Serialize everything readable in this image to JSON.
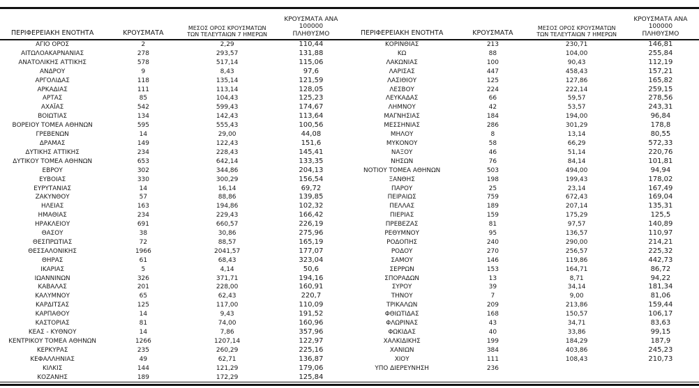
{
  "columns": {
    "region": "ΠΕΡΙΦΕΡΕΙΑΚΗ ΕΝΟΤΗΤΑ",
    "cases": "ΚΡΟΥΣΜΑΤΑ",
    "avg7": "ΜΕΣΟΣ ΟΡΟΣ ΚΡΟΥΣΜΑΤΩΝ\nΤΩΝ ΤΕΛΕΥΤΑΙΩΝ 7 ΗΜΕΡΩΝ",
    "per100k": "ΚΡΟΥΣΜΑΤΑ ΑΝΑ 100000\nΠΛΗΘΥΣΜΟ"
  },
  "left_table": {
    "rows": [
      {
        "name": "ΑΓΙΟ ΟΡΟΣ",
        "cases": "2",
        "avg7": "2,29",
        "per100k": "110,44"
      },
      {
        "name": "ΑΙΤΩΛΟΑΚΑΡΝΑΝΙΑΣ",
        "cases": "278",
        "avg7": "293,57",
        "per100k": "131,88"
      },
      {
        "name": "ΑΝΑΤΟΛΙΚΗΣ ΑΤΤΙΚΗΣ",
        "cases": "578",
        "avg7": "517,14",
        "per100k": "115,06"
      },
      {
        "name": "ΑΝΔΡΟΥ",
        "cases": "9",
        "avg7": "8,43",
        "per100k": "97,6"
      },
      {
        "name": "ΑΡΓΟΛΙΔΑΣ",
        "cases": "118",
        "avg7": "135,14",
        "per100k": "121,59"
      },
      {
        "name": "ΑΡΚΑΔΙΑΣ",
        "cases": "111",
        "avg7": "113,14",
        "per100k": "128,05"
      },
      {
        "name": "ΑΡΤΑΣ",
        "cases": "85",
        "avg7": "104,43",
        "per100k": "125,23"
      },
      {
        "name": "ΑΧΑΪΑΣ",
        "cases": "542",
        "avg7": "599,43",
        "per100k": "174,67"
      },
      {
        "name": "ΒΟΙΩΤΙΑΣ",
        "cases": "134",
        "avg7": "142,43",
        "per100k": "113,64"
      },
      {
        "name": "ΒΟΡΕΙΟΥ ΤΟΜΕΑ ΑΘΗΝΩΝ",
        "cases": "595",
        "avg7": "555,43",
        "per100k": "100,56"
      },
      {
        "name": "ΓΡΕΒΕΝΩΝ",
        "cases": "14",
        "avg7": "29,00",
        "per100k": "44,08"
      },
      {
        "name": "ΔΡΑΜΑΣ",
        "cases": "149",
        "avg7": "122,43",
        "per100k": "151,6"
      },
      {
        "name": "ΔΥΤΙΚΗΣ ΑΤΤΙΚΗΣ",
        "cases": "234",
        "avg7": "228,43",
        "per100k": "145,41"
      },
      {
        "name": "ΔΥΤΙΚΟΥ ΤΟΜΕΑ ΑΘΗΝΩΝ",
        "cases": "653",
        "avg7": "642,14",
        "per100k": "133,35"
      },
      {
        "name": "ΕΒΡΟΥ",
        "cases": "302",
        "avg7": "344,86",
        "per100k": "204,13"
      },
      {
        "name": "ΕΥΒΟΙΑΣ",
        "cases": "330",
        "avg7": "300,29",
        "per100k": "156,54"
      },
      {
        "name": "ΕΥΡΥΤΑΝΙΑΣ",
        "cases": "14",
        "avg7": "16,14",
        "per100k": "69,72"
      },
      {
        "name": "ΖΑΚΥΝΘΟΥ",
        "cases": "57",
        "avg7": "88,86",
        "per100k": "139,85"
      },
      {
        "name": "ΗΛΕΙΑΣ",
        "cases": "163",
        "avg7": "194,86",
        "per100k": "102,32"
      },
      {
        "name": "ΗΜΑΘΙΑΣ",
        "cases": "234",
        "avg7": "229,43",
        "per100k": "166,42"
      },
      {
        "name": "ΗΡΑΚΛΕΙΟΥ",
        "cases": "691",
        "avg7": "660,57",
        "per100k": "226,19"
      },
      {
        "name": "ΘΑΣΟΥ",
        "cases": "38",
        "avg7": "30,86",
        "per100k": "275,96"
      },
      {
        "name": "ΘΕΣΠΡΩΤΙΑΣ",
        "cases": "72",
        "avg7": "88,57",
        "per100k": "165,19"
      },
      {
        "name": "ΘΕΣΣΑΛΟΝΙΚΗΣ",
        "cases": "1966",
        "avg7": "2041,57",
        "per100k": "177,07"
      },
      {
        "name": "ΘΗΡΑΣ",
        "cases": "61",
        "avg7": "68,43",
        "per100k": "323,04"
      },
      {
        "name": "ΙΚΑΡΙΑΣ",
        "cases": "5",
        "avg7": "4,14",
        "per100k": "50,6"
      },
      {
        "name": "ΙΩΑΝΝΙΝΩΝ",
        "cases": "326",
        "avg7": "371,71",
        "per100k": "194,16"
      },
      {
        "name": "ΚΑΒΑΛΑΣ",
        "cases": "201",
        "avg7": "228,00",
        "per100k": "160,91"
      },
      {
        "name": "ΚΑΛΥΜΝΟΥ",
        "cases": "65",
        "avg7": "62,43",
        "per100k": "220,7"
      },
      {
        "name": "ΚΑΡΔΙΤΣΑΣ",
        "cases": "125",
        "avg7": "117,00",
        "per100k": "110,09"
      },
      {
        "name": "ΚΑΡΠΑΘΟΥ",
        "cases": "14",
        "avg7": "9,43",
        "per100k": "191,52"
      },
      {
        "name": "ΚΑΣΤΟΡΙΑΣ",
        "cases": "81",
        "avg7": "74,00",
        "per100k": "160,96"
      },
      {
        "name": "ΚΕΑΣ - ΚΥΘΝΟΥ",
        "cases": "14",
        "avg7": "7,86",
        "per100k": "357,96"
      },
      {
        "name": "ΚΕΝΤΡΙΚΟΥ ΤΟΜΕΑ ΑΘΗΝΩΝ",
        "cases": "1266",
        "avg7": "1207,14",
        "per100k": "122,97"
      },
      {
        "name": "ΚΕΡΚΥΡΑΣ",
        "cases": "235",
        "avg7": "260,29",
        "per100k": "225,16"
      },
      {
        "name": "ΚΕΦΑΛΛΗΝΙΑΣ",
        "cases": "49",
        "avg7": "62,71",
        "per100k": "136,87"
      },
      {
        "name": "ΚΙΛΚΙΣ",
        "cases": "144",
        "avg7": "121,29",
        "per100k": "179,06"
      },
      {
        "name": "ΚΟΖΑΝΗΣ",
        "cases": "189",
        "avg7": "172,29",
        "per100k": "125,84"
      }
    ]
  },
  "right_table": {
    "rows": [
      {
        "name": "ΚΟΡΙΝΘΙΑΣ",
        "cases": "213",
        "avg7": "230,71",
        "per100k": "146,81"
      },
      {
        "name": "ΚΩ",
        "cases": "88",
        "avg7": "104,00",
        "per100k": "255,84"
      },
      {
        "name": "ΛΑΚΩΝΙΑΣ",
        "cases": "100",
        "avg7": "90,43",
        "per100k": "112,19"
      },
      {
        "name": "ΛΑΡΙΣΑΣ",
        "cases": "447",
        "avg7": "458,43",
        "per100k": "157,21"
      },
      {
        "name": "ΛΑΣΙΘΙΟΥ",
        "cases": "125",
        "avg7": "127,86",
        "per100k": "165,82"
      },
      {
        "name": "ΛΕΣΒΟΥ",
        "cases": "224",
        "avg7": "222,14",
        "per100k": "259,15"
      },
      {
        "name": "ΛΕΥΚΑΔΑΣ",
        "cases": "66",
        "avg7": "59,57",
        "per100k": "278,56"
      },
      {
        "name": "ΛΗΜΝΟΥ",
        "cases": "42",
        "avg7": "53,57",
        "per100k": "243,31"
      },
      {
        "name": "ΜΑΓΝΗΣΙΑΣ",
        "cases": "184",
        "avg7": "194,00",
        "per100k": "96,84"
      },
      {
        "name": "ΜΕΣΣΗΝΙΑΣ",
        "cases": "286",
        "avg7": "301,29",
        "per100k": "178,8"
      },
      {
        "name": "ΜΗΛΟΥ",
        "cases": "8",
        "avg7": "13,14",
        "per100k": "80,55"
      },
      {
        "name": "ΜΥΚΟΝΟΥ",
        "cases": "58",
        "avg7": "66,29",
        "per100k": "572,33"
      },
      {
        "name": "ΝΑΞΟΥ",
        "cases": "46",
        "avg7": "51,14",
        "per100k": "220,76"
      },
      {
        "name": "ΝΗΣΩΝ",
        "cases": "76",
        "avg7": "84,14",
        "per100k": "101,81"
      },
      {
        "name": "ΝΟΤΙΟΥ ΤΟΜΕΑ ΑΘΗΝΩΝ",
        "cases": "503",
        "avg7": "494,00",
        "per100k": "94,94"
      },
      {
        "name": "ΞΑΝΘΗΣ",
        "cases": "198",
        "avg7": "199,43",
        "per100k": "178,02"
      },
      {
        "name": "ΠΑΡΟΥ",
        "cases": "25",
        "avg7": "23,14",
        "per100k": "167,49"
      },
      {
        "name": "ΠΕΙΡΑΙΩΣ",
        "cases": "759",
        "avg7": "672,43",
        "per100k": "169,04"
      },
      {
        "name": "ΠΕΛΛΑΣ",
        "cases": "189",
        "avg7": "207,14",
        "per100k": "135,31"
      },
      {
        "name": "ΠΙΕΡΙΑΣ",
        "cases": "159",
        "avg7": "175,29",
        "per100k": "125,5"
      },
      {
        "name": "ΠΡΕΒΕΖΑΣ",
        "cases": "81",
        "avg7": "97,57",
        "per100k": "140,89"
      },
      {
        "name": "ΡΕΘΥΜΝΟΥ",
        "cases": "95",
        "avg7": "136,57",
        "per100k": "110,97"
      },
      {
        "name": "ΡΟΔΟΠΗΣ",
        "cases": "240",
        "avg7": "290,00",
        "per100k": "214,21"
      },
      {
        "name": "ΡΟΔΟΥ",
        "cases": "270",
        "avg7": "256,57",
        "per100k": "225,32"
      },
      {
        "name": "ΣΑΜΟΥ",
        "cases": "146",
        "avg7": "119,86",
        "per100k": "442,73"
      },
      {
        "name": "ΣΕΡΡΩΝ",
        "cases": "153",
        "avg7": "164,71",
        "per100k": "86,72"
      },
      {
        "name": "ΣΠΟΡΑΔΩΝ",
        "cases": "13",
        "avg7": "8,71",
        "per100k": "94,22"
      },
      {
        "name": "ΣΥΡΟΥ",
        "cases": "39",
        "avg7": "34,14",
        "per100k": "181,34"
      },
      {
        "name": "ΤΗΝΟΥ",
        "cases": "7",
        "avg7": "9,00",
        "per100k": "81,06"
      },
      {
        "name": "ΤΡΙΚΑΛΩΝ",
        "cases": "209",
        "avg7": "213,86",
        "per100k": "159,44"
      },
      {
        "name": "ΦΘΙΩΤΙΔΑΣ",
        "cases": "168",
        "avg7": "150,57",
        "per100k": "106,17"
      },
      {
        "name": "ΦΛΩΡΙΝΑΣ",
        "cases": "43",
        "avg7": "34,71",
        "per100k": "83,63"
      },
      {
        "name": "ΦΩΚΙΔΑΣ",
        "cases": "40",
        "avg7": "33,86",
        "per100k": "99,15"
      },
      {
        "name": "ΧΑΛΚΙΔΙΚΗΣ",
        "cases": "199",
        "avg7": "184,29",
        "per100k": "187,9"
      },
      {
        "name": "ΧΑΝΙΩΝ",
        "cases": "384",
        "avg7": "403,86",
        "per100k": "245,23"
      },
      {
        "name": "ΧΙΟΥ",
        "cases": "111",
        "avg7": "108,43",
        "per100k": "210,73"
      },
      {
        "name": "ΥΠΟ ΔΙΕΡΕΥΝΗΣΗ",
        "cases": "236",
        "avg7": "",
        "per100k": ""
      }
    ]
  }
}
